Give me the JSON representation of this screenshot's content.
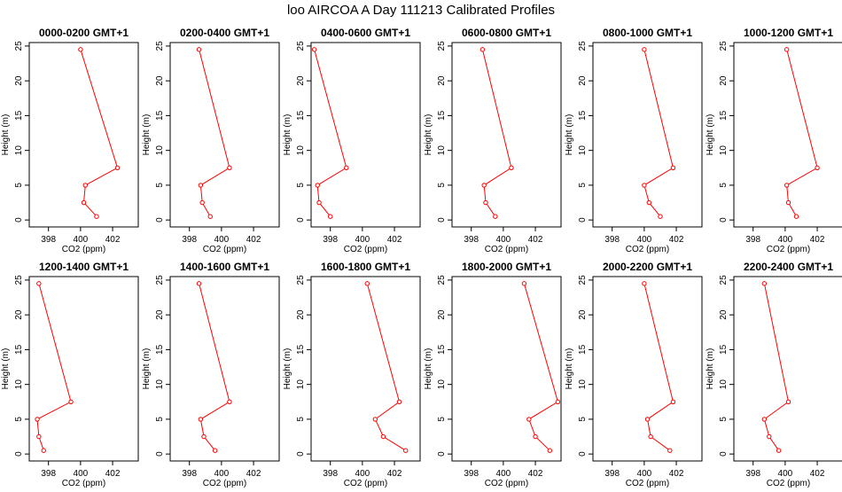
{
  "title": "loo AIRCOA A  Day 111213  Calibrated Profiles",
  "colors": {
    "series": "#ff0000",
    "axis": "#000000",
    "text": "#000000"
  },
  "chart_data": {
    "type": "line",
    "ylabel": "Height (m)",
    "xlabel": "CO2 (ppm)",
    "xlim": [
      396.8,
      403.6
    ],
    "ylim": [
      -1,
      25.5
    ],
    "xticks": [
      398,
      400,
      402
    ],
    "yticks": [
      0,
      5,
      10,
      15,
      20,
      25
    ],
    "heights": [
      24.5,
      7.5,
      5.0,
      2.5,
      0.5
    ],
    "panels": [
      {
        "title": "0000-0200 GMT+1",
        "co2": [
          400.0,
          402.3,
          400.3,
          400.2,
          401.0
        ]
      },
      {
        "title": "0200-0400 GMT+1",
        "co2": [
          398.6,
          400.5,
          398.7,
          398.8,
          399.3
        ]
      },
      {
        "title": "0400-0600 GMT+1",
        "co2": [
          397.0,
          399.0,
          397.2,
          397.3,
          398.0
        ]
      },
      {
        "title": "0600-0800 GMT+1",
        "co2": [
          398.7,
          400.5,
          398.8,
          398.9,
          399.5
        ]
      },
      {
        "title": "0800-1000 GMT+1",
        "co2": [
          400.0,
          401.8,
          400.0,
          400.3,
          401.0
        ]
      },
      {
        "title": "1000-1200 GMT+1",
        "co2": [
          400.1,
          402.0,
          400.1,
          400.2,
          400.7
        ]
      },
      {
        "title": "1200-1400 GMT+1",
        "co2": [
          397.4,
          399.4,
          397.3,
          397.4,
          397.7
        ]
      },
      {
        "title": "1400-1600 GMT+1",
        "co2": [
          398.6,
          400.5,
          398.7,
          398.9,
          399.6
        ]
      },
      {
        "title": "1600-1800 GMT+1",
        "co2": [
          400.3,
          402.3,
          400.8,
          401.3,
          402.7
        ]
      },
      {
        "title": "1800-2000 GMT+1",
        "co2": [
          401.3,
          403.4,
          401.6,
          402.0,
          402.9
        ]
      },
      {
        "title": "2000-2200 GMT+1",
        "co2": [
          400.0,
          401.8,
          400.2,
          400.4,
          401.6
        ]
      },
      {
        "title": "2200-2400 GMT+1",
        "co2": [
          398.7,
          400.2,
          398.7,
          399.0,
          399.6
        ]
      }
    ]
  }
}
